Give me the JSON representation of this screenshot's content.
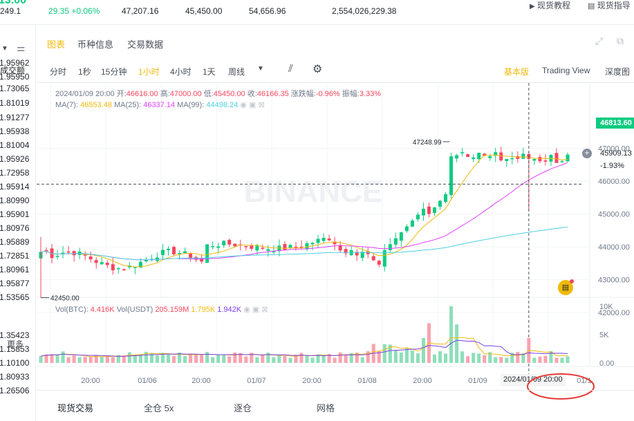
{
  "ticker": {
    "price_partial": "13.00",
    "price_sub": "249.1",
    "change": "29.35 +0.06%",
    "high": "47,207.16",
    "low": "45,450.00",
    "vol_btc": "54,656.96",
    "vol_usdt": "2,554,026,229.38"
  },
  "header": {
    "tutorial": "现货教程",
    "guide": "现货指导"
  },
  "left_panel": {
    "sort_label": "成交额",
    "more": "更多",
    "values": [
      "1.95962",
      "1.95950",
      "1.73065",
      "1.81019",
      "1.91277",
      "1.95938",
      "1.81004",
      "1.95926",
      "1.72958",
      "1.95914",
      "1.80990",
      "1.95901",
      "1.80976",
      "1.95889",
      "1.72851",
      "1.80961",
      "1.95877",
      "1.53565",
      "1.35423",
      "1.15853",
      "1.10100",
      "1.80933",
      "1.26506"
    ]
  },
  "tabs": {
    "chart": "图表",
    "coin_info": "币种信息",
    "trade_data": "交易数据"
  },
  "intervals": {
    "items": [
      "分时",
      "1秒",
      "15分钟",
      "1小时",
      "4小时",
      "1天",
      "周线"
    ],
    "active": "1小时"
  },
  "views": {
    "basic": "基本版",
    "trading_view": "Trading View",
    "depth": "深度图"
  },
  "ohlc": {
    "date": "2024/01/09 20:00",
    "open_label": "开:",
    "open": "46616.00",
    "high_label": "高:",
    "high": "47000.00",
    "low_label": "低:",
    "low": "45450.00",
    "close_label": "收:",
    "close": "46166.35",
    "change_label": "涨跌幅:",
    "change": "-0.96%",
    "amp_label": "振幅:",
    "amp": "3.33%"
  },
  "ma": {
    "ma7_label": "MA(7):",
    "ma7": "46553.48",
    "ma25_label": "MA(25):",
    "ma25": "46337.14",
    "ma99_label": "MA(99):",
    "ma99": "44498.24",
    "ma7_color": "#f0b90b",
    "ma25_color": "#e040fb",
    "ma99_color": "#4dd0e1"
  },
  "vol": {
    "btc_label": "Vol(BTC):",
    "btc": "4.416K",
    "usdt_label": "Vol(USDT)",
    "usdt": "205.159M",
    "ma5": "1.795K",
    "ma10": "1.942K"
  },
  "chart": {
    "watermark": "BINANCE",
    "high_marker": "47248.99",
    "low_marker": "42450.00",
    "last_price": "46813.60",
    "crosshair_price": "45909.13",
    "crosshair_pct": "-1.93%",
    "price_ticks": [
      "47000.00",
      "46000.00",
      "45000.00",
      "44000.00",
      "43000.00",
      "42000.00"
    ],
    "vol_ticks": [
      "10K",
      "5K",
      "0.00"
    ],
    "time_ticks": [
      "20:00",
      "01/06",
      "20:00",
      "01/07",
      "20:00",
      "01/08",
      "20:00",
      "01/09",
      "01/1"
    ],
    "crosshair_time": "2024/01/09 20:00"
  },
  "bottom_tabs": {
    "items": [
      "现货交易",
      "全仓 5x",
      "逐仓",
      "网格"
    ],
    "active": "现货交易"
  },
  "colors": {
    "up": "#0ecb81",
    "down": "#f6465d",
    "accent": "#f0b90b",
    "annotation": "#e53935"
  }
}
